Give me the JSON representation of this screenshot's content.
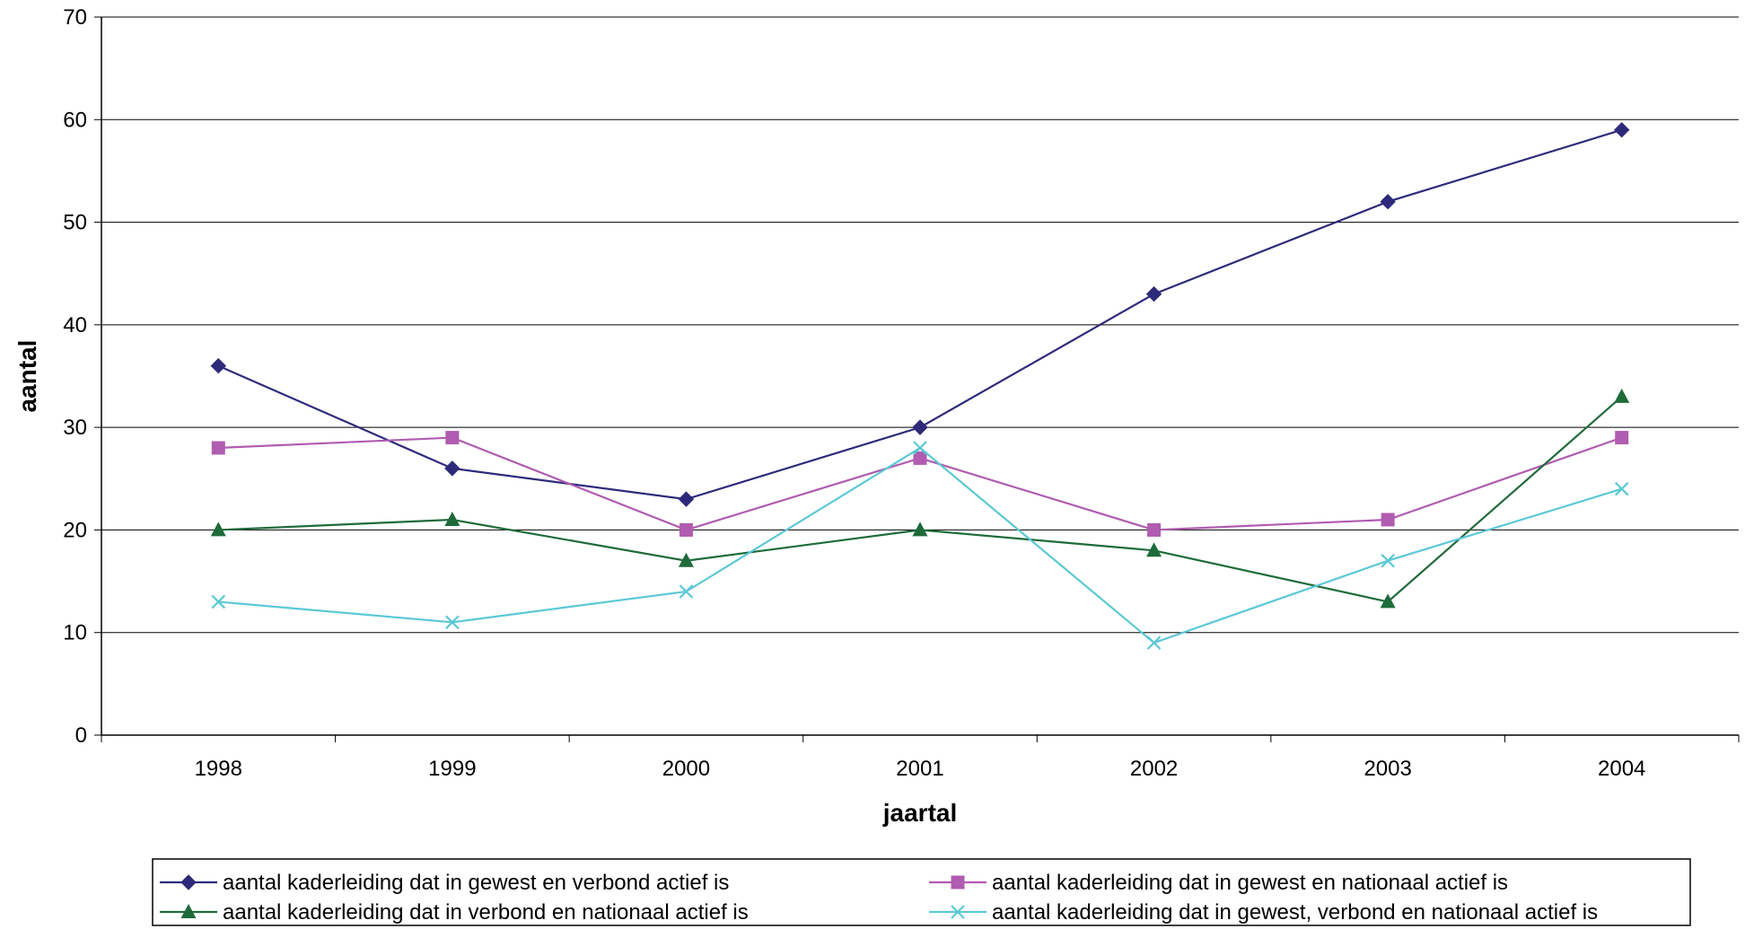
{
  "chart_data": {
    "type": "line",
    "title": "",
    "xlabel": "jaartal",
    "ylabel": "aantal",
    "ylim": [
      0,
      70
    ],
    "yticks": [
      0,
      10,
      20,
      30,
      40,
      50,
      60,
      70
    ],
    "grid": true,
    "legend_position": "bottom",
    "categories": [
      "1998",
      "1999",
      "2000",
      "2001",
      "2002",
      "2003",
      "2004"
    ],
    "series": [
      {
        "name": "aantal kaderleiding dat in gewest en verbond actief is",
        "color": "#2E2A7A",
        "marker": "diamond",
        "values": [
          36,
          26,
          23,
          30,
          43,
          52,
          59
        ]
      },
      {
        "name": "aantal kaderleiding dat in gewest en nationaal actief is",
        "color": "#B05CB0",
        "marker": "square",
        "values": [
          28,
          29,
          20,
          27,
          20,
          21,
          29
        ]
      },
      {
        "name": "aantal kaderleiding dat in verbond en nationaal actief is",
        "color": "#1E6B3A",
        "marker": "triangle",
        "values": [
          20,
          21,
          17,
          20,
          18,
          13,
          33
        ]
      },
      {
        "name": "aantal kaderleiding dat in gewest, verbond en nationaal actief is",
        "color": "#5BC8D6",
        "marker": "x",
        "values": [
          13,
          11,
          14,
          28,
          9,
          17,
          24
        ]
      }
    ]
  }
}
